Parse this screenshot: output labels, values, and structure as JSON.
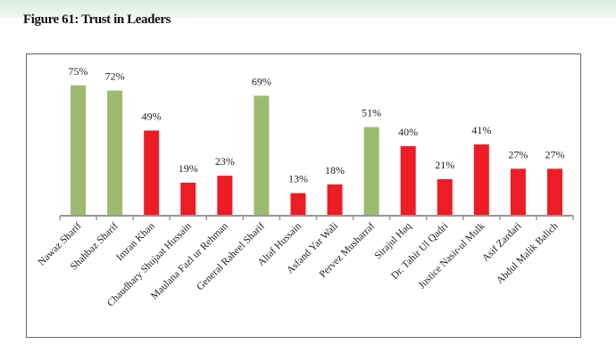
{
  "chart_data": {
    "type": "bar",
    "title": "Figure 61: Trust in Leaders",
    "categories": [
      "Nawaz Sharif",
      "Shahbaz Sharif",
      "Imran Khan",
      "Chaudhary Shujaat Hussain",
      "Maulana Fazl ur Rehman",
      "General Raheel Sharif",
      "Altaf Hussain",
      "Asfand Yar Wali",
      "Pervez Musharraf",
      "Sirajul Haq",
      "Dr. Tahir Ul Qadri",
      "Justice Nasir-ul Mulk",
      "Asif Zardari",
      "Abdul Malik Balich"
    ],
    "values": [
      75,
      72,
      49,
      19,
      23,
      69,
      13,
      18,
      51,
      40,
      21,
      41,
      27,
      27
    ],
    "value_labels": [
      "75%",
      "72%",
      "49%",
      "19%",
      "23%",
      "69%",
      "13%",
      "18%",
      "51%",
      "40%",
      "21%",
      "41%",
      "27%",
      "27%"
    ],
    "bar_colors": [
      "#9bbb6e",
      "#9bbb6e",
      "#ee1c25",
      "#ee1c25",
      "#ee1c25",
      "#9bbb6e",
      "#ee1c25",
      "#ee1c25",
      "#9bbb6e",
      "#ee1c25",
      "#ee1c25",
      "#ee1c25",
      "#ee1c25",
      "#ee1c25"
    ],
    "xlabel": "",
    "ylabel": "",
    "ylim": [
      0,
      80
    ],
    "grid": false,
    "legend": "none"
  }
}
